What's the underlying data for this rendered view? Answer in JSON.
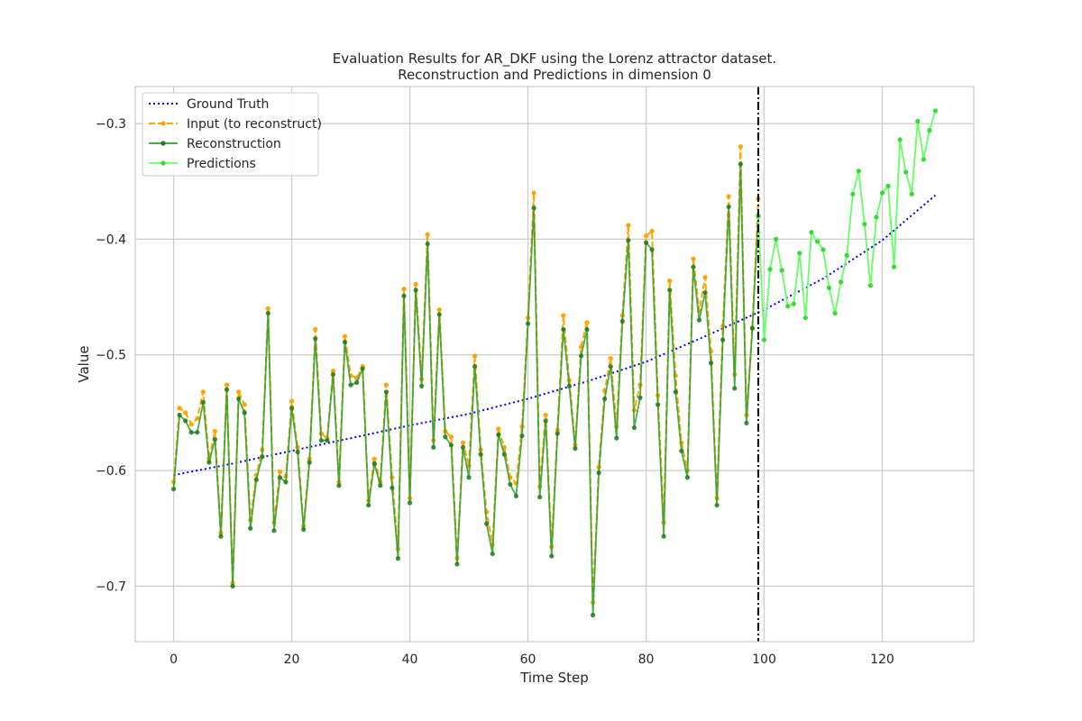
{
  "chart_data": {
    "type": "line",
    "title_line1": "Evaluation Results for AR_DKF using the Lorenz attractor dataset.",
    "title_line2": "Reconstruction and Predictions in dimension 0",
    "xlabel": "Time Step",
    "ylabel": "Value",
    "xlim": [
      -6.5,
      135.5
    ],
    "ylim": [
      -0.748,
      -0.268
    ],
    "xticks": [
      0,
      20,
      40,
      60,
      80,
      100,
      120
    ],
    "yticks": [
      -0.7,
      -0.6,
      -0.5,
      -0.4,
      -0.3
    ],
    "ytick_labels": [
      "−0.7",
      "−0.6",
      "−0.5",
      "−0.4",
      "−0.3"
    ],
    "grid": true,
    "legend_position": "top-left",
    "vline_x": 99,
    "series": [
      {
        "name": "Ground Truth",
        "style": "dotted",
        "color": "#0000ff",
        "x": [
          0,
          10,
          20,
          30,
          40,
          50,
          60,
          70,
          80,
          90,
          100,
          110,
          120,
          129
        ],
        "values": [
          -0.604,
          -0.594,
          -0.583,
          -0.572,
          -0.561,
          -0.551,
          -0.538,
          -0.523,
          -0.506,
          -0.484,
          -0.461,
          -0.434,
          -0.401,
          -0.362
        ]
      },
      {
        "name": "Input (to reconstruct)",
        "style": "dashed-marker",
        "color": "#ffa500",
        "x_start": 0,
        "values": [
          -0.61,
          -0.546,
          -0.55,
          -0.56,
          -0.555,
          -0.532,
          -0.59,
          -0.566,
          -0.654,
          -0.526,
          -0.697,
          -0.532,
          -0.543,
          -0.643,
          -0.604,
          -0.582,
          -0.46,
          -0.645,
          -0.601,
          -0.605,
          -0.54,
          -0.58,
          -0.648,
          -0.59,
          -0.478,
          -0.568,
          -0.572,
          -0.514,
          -0.61,
          -0.484,
          -0.518,
          -0.52,
          -0.51,
          -0.626,
          -0.59,
          -0.61,
          -0.526,
          -0.606,
          -0.668,
          -0.443,
          -0.624,
          -0.439,
          -0.521,
          -0.396,
          -0.574,
          -0.461,
          -0.566,
          -0.571,
          -0.676,
          -0.576,
          -0.596,
          -0.501,
          -0.582,
          -0.636,
          -0.664,
          -0.564,
          -0.58,
          -0.606,
          -0.611,
          -0.562,
          -0.468,
          -0.36,
          -0.614,
          -0.552,
          -0.666,
          -0.565,
          -0.466,
          -0.522,
          -0.578,
          -0.493,
          -0.472,
          -0.714,
          -0.597,
          -0.531,
          -0.503,
          -0.562,
          -0.466,
          -0.388,
          -0.548,
          -0.526,
          -0.397,
          -0.393,
          -0.535,
          -0.645,
          -0.436,
          -0.518,
          -0.576,
          -0.6,
          -0.417,
          -0.462,
          -0.433,
          -0.497,
          -0.624,
          -0.475,
          -0.363,
          -0.517,
          -0.32,
          -0.552,
          -0.477,
          -0.365
        ]
      },
      {
        "name": "Reconstruction",
        "style": "solid-marker",
        "color": "#2ca02c",
        "x_start": 0,
        "values": [
          -0.616,
          -0.552,
          -0.557,
          -0.567,
          -0.567,
          -0.541,
          -0.593,
          -0.573,
          -0.657,
          -0.53,
          -0.7,
          -0.538,
          -0.55,
          -0.65,
          -0.608,
          -0.588,
          -0.464,
          -0.652,
          -0.606,
          -0.61,
          -0.546,
          -0.584,
          -0.651,
          -0.593,
          -0.486,
          -0.574,
          -0.574,
          -0.517,
          -0.613,
          -0.489,
          -0.526,
          -0.524,
          -0.512,
          -0.63,
          -0.594,
          -0.613,
          -0.532,
          -0.615,
          -0.676,
          -0.449,
          -0.628,
          -0.444,
          -0.527,
          -0.404,
          -0.58,
          -0.465,
          -0.571,
          -0.578,
          -0.681,
          -0.58,
          -0.606,
          -0.51,
          -0.586,
          -0.646,
          -0.672,
          -0.569,
          -0.586,
          -0.612,
          -0.622,
          -0.57,
          -0.473,
          -0.373,
          -0.623,
          -0.557,
          -0.674,
          -0.568,
          -0.478,
          -0.527,
          -0.581,
          -0.501,
          -0.478,
          -0.725,
          -0.602,
          -0.538,
          -0.51,
          -0.572,
          -0.471,
          -0.401,
          -0.563,
          -0.537,
          -0.403,
          -0.409,
          -0.543,
          -0.657,
          -0.444,
          -0.532,
          -0.583,
          -0.606,
          -0.424,
          -0.47,
          -0.446,
          -0.507,
          -0.63,
          -0.487,
          -0.372,
          -0.529,
          -0.335,
          -0.559,
          -0.477,
          -0.38
        ]
      },
      {
        "name": "Predictions",
        "style": "solid-marker",
        "color": "#66ff66",
        "x_start": 99,
        "values": [
          -0.38,
          -0.487,
          -0.426,
          -0.4,
          -0.427,
          -0.458,
          -0.456,
          -0.412,
          -0.468,
          -0.394,
          -0.402,
          -0.409,
          -0.442,
          -0.464,
          -0.437,
          -0.414,
          -0.361,
          -0.341,
          -0.387,
          -0.44,
          -0.381,
          -0.36,
          -0.354,
          -0.424,
          -0.314,
          -0.342,
          -0.361,
          -0.298,
          -0.331,
          -0.306,
          -0.289
        ]
      }
    ]
  }
}
